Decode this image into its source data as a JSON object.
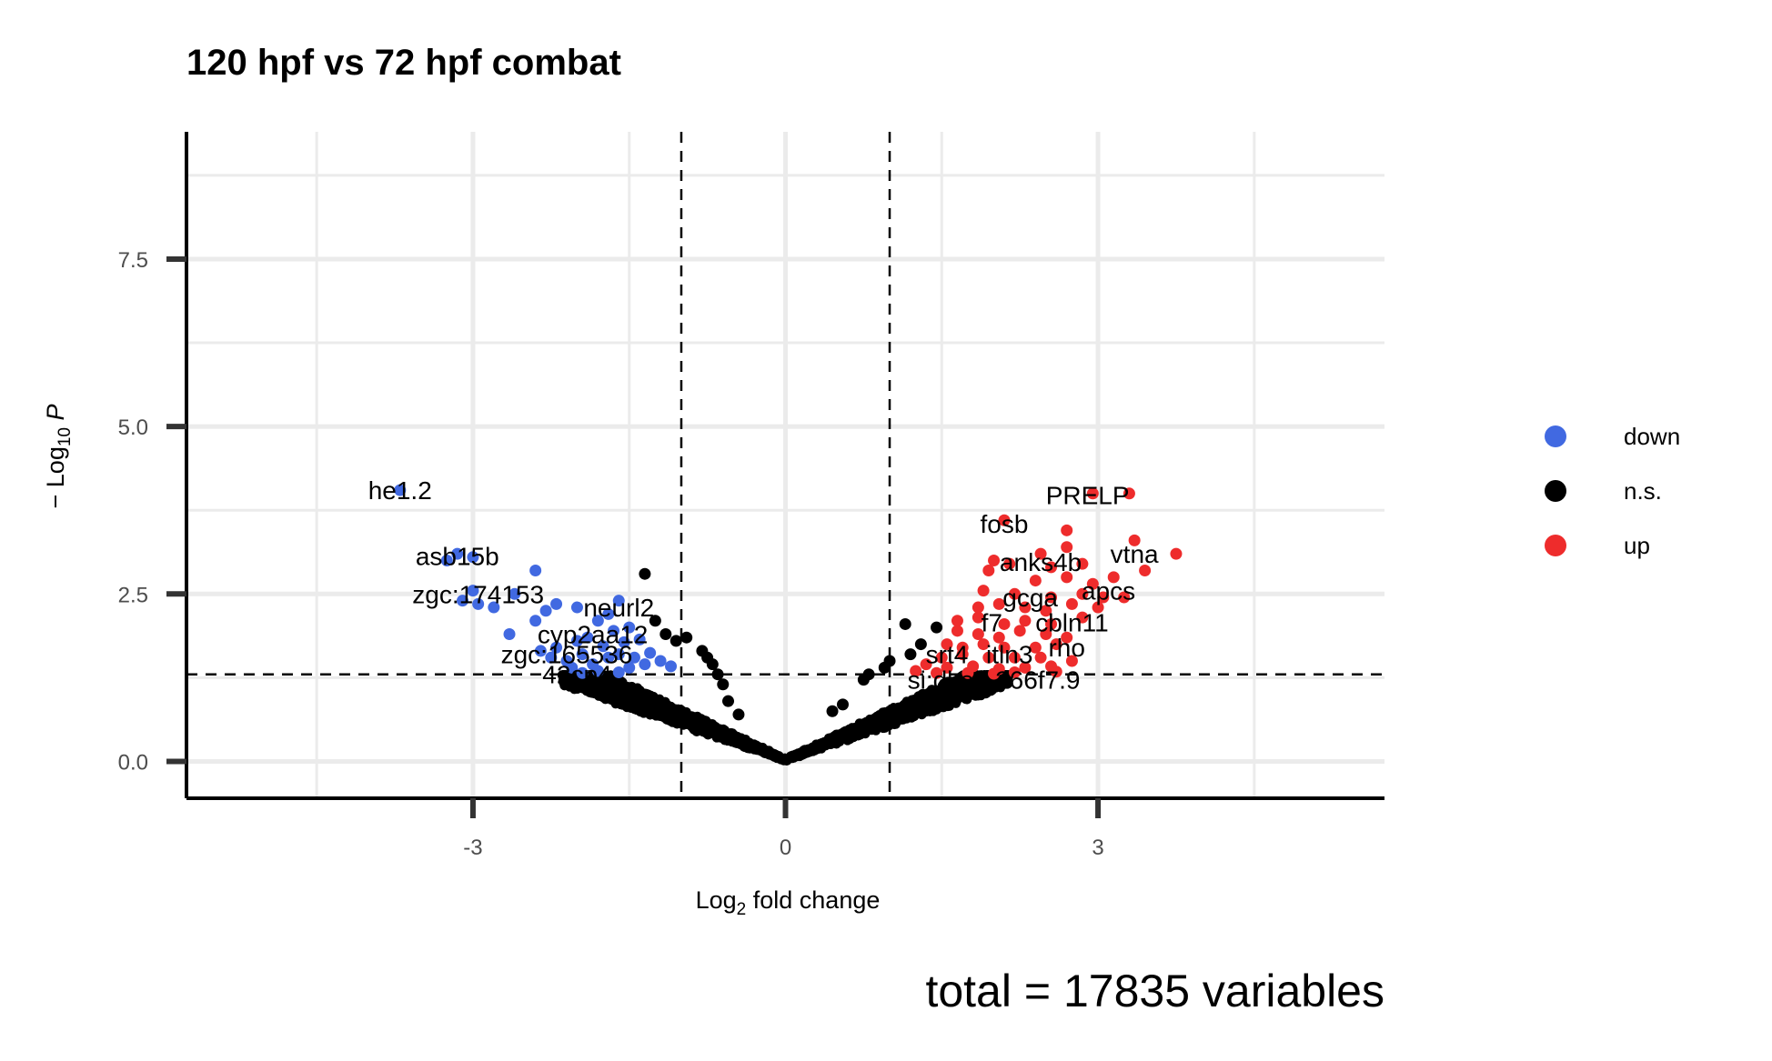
{
  "chart_data": {
    "type": "scatter",
    "title": "120 hpf vs 72 hpf combat",
    "xlabel": {
      "prefix": "Log",
      "subscript": "2",
      "suffix": " fold change"
    },
    "ylabel": {
      "prefix": "− Log",
      "subscript": "10",
      "italic": " P"
    },
    "caption": "total = 17835 variables",
    "xlim": [
      -5.75,
      5.75
    ],
    "ylim": [
      -0.55,
      9.4
    ],
    "x_ticks": [
      -3,
      0,
      3
    ],
    "x_tick_labels": [
      "-3",
      "0",
      "3"
    ],
    "y_ticks": [
      0,
      2.5,
      5,
      7.5
    ],
    "y_tick_labels": [
      "0.0",
      "2.5",
      "5.0",
      "7.5"
    ],
    "x_minor_grid": [
      -4.5,
      -1.5,
      1.5,
      4.5
    ],
    "y_minor_grid": [
      1.25,
      3.75,
      6.25,
      8.75
    ],
    "thresholds": {
      "log2fc": [
        -1,
        1
      ],
      "neg_log10_p": 1.3
    },
    "grid": true,
    "legend": {
      "position": "right",
      "title": ""
    },
    "series": [
      {
        "name": "down",
        "color": "#4169e1",
        "points": [
          [
            -3.7,
            4.05
          ],
          [
            -3.15,
            3.1
          ],
          [
            -3.0,
            3.05
          ],
          [
            -3.25,
            3.0
          ],
          [
            -2.4,
            2.85
          ],
          [
            -3.0,
            2.55
          ],
          [
            -2.6,
            2.5
          ],
          [
            -2.2,
            2.35
          ],
          [
            -2.95,
            2.35
          ],
          [
            -3.1,
            2.4
          ],
          [
            -2.8,
            2.3
          ],
          [
            -2.3,
            2.25
          ],
          [
            -1.6,
            2.4
          ],
          [
            -1.7,
            2.2
          ],
          [
            -2.0,
            2.3
          ],
          [
            -2.4,
            2.1
          ],
          [
            -2.65,
            1.9
          ],
          [
            -1.8,
            2.1
          ],
          [
            -1.65,
            1.95
          ],
          [
            -1.5,
            2.0
          ],
          [
            -2.0,
            1.8
          ],
          [
            -1.9,
            1.85
          ],
          [
            -2.35,
            1.65
          ],
          [
            -2.2,
            1.7
          ],
          [
            -1.75,
            1.72
          ],
          [
            -1.55,
            1.78
          ],
          [
            -1.4,
            1.82
          ],
          [
            -2.25,
            1.55
          ],
          [
            -2.1,
            1.5
          ],
          [
            -1.95,
            1.6
          ],
          [
            -1.85,
            1.45
          ],
          [
            -1.7,
            1.55
          ],
          [
            -1.6,
            1.6
          ],
          [
            -1.45,
            1.55
          ],
          [
            -1.3,
            1.62
          ],
          [
            -2.05,
            1.4
          ],
          [
            -1.8,
            1.35
          ],
          [
            -1.5,
            1.4
          ],
          [
            -1.35,
            1.45
          ],
          [
            -1.2,
            1.5
          ],
          [
            -1.1,
            1.42
          ],
          [
            -1.95,
            1.32
          ],
          [
            -1.6,
            1.33
          ]
        ]
      },
      {
        "name": "n.s.",
        "color": "#000000",
        "points": [
          [
            -1.35,
            2.8
          ],
          [
            -1.25,
            2.1
          ],
          [
            -1.15,
            1.9
          ],
          [
            -1.05,
            1.8
          ],
          [
            -0.95,
            1.85
          ],
          [
            -0.8,
            1.65
          ],
          [
            -0.75,
            1.55
          ],
          [
            -0.7,
            1.45
          ],
          [
            -0.65,
            1.3
          ],
          [
            -0.6,
            1.15
          ],
          [
            1.15,
            2.05
          ],
          [
            1.45,
            2.0
          ],
          [
            1.3,
            1.75
          ],
          [
            1.2,
            1.6
          ],
          [
            1.0,
            1.5
          ],
          [
            0.95,
            1.4
          ],
          [
            0.8,
            1.3
          ],
          [
            0.75,
            1.22
          ],
          [
            0.55,
            0.85
          ],
          [
            0.45,
            0.75
          ],
          [
            -0.45,
            0.7
          ],
          [
            -0.55,
            0.9
          ]
        ]
      },
      {
        "name": "up",
        "color": "#ee2c2c",
        "points": [
          [
            2.95,
            4.0
          ],
          [
            3.3,
            4.0
          ],
          [
            2.1,
            3.6
          ],
          [
            2.7,
            3.45
          ],
          [
            2.45,
            3.1
          ],
          [
            2.0,
            3.0
          ],
          [
            2.7,
            3.2
          ],
          [
            3.35,
            3.3
          ],
          [
            3.75,
            3.1
          ],
          [
            2.15,
            2.95
          ],
          [
            2.55,
            2.9
          ],
          [
            2.85,
            2.95
          ],
          [
            1.95,
            2.85
          ],
          [
            2.4,
            2.7
          ],
          [
            2.7,
            2.75
          ],
          [
            2.95,
            2.65
          ],
          [
            3.15,
            2.75
          ],
          [
            3.45,
            2.85
          ],
          [
            1.9,
            2.55
          ],
          [
            2.2,
            2.5
          ],
          [
            2.55,
            2.45
          ],
          [
            2.85,
            2.5
          ],
          [
            3.05,
            2.45
          ],
          [
            3.25,
            2.45
          ],
          [
            1.85,
            2.3
          ],
          [
            2.05,
            2.35
          ],
          [
            2.3,
            2.3
          ],
          [
            2.5,
            2.25
          ],
          [
            2.75,
            2.35
          ],
          [
            3.0,
            2.3
          ],
          [
            1.65,
            2.1
          ],
          [
            1.85,
            2.15
          ],
          [
            2.1,
            2.05
          ],
          [
            2.3,
            2.1
          ],
          [
            2.55,
            2.05
          ],
          [
            2.85,
            2.15
          ],
          [
            1.65,
            1.95
          ],
          [
            1.85,
            1.9
          ],
          [
            2.05,
            1.85
          ],
          [
            2.25,
            1.95
          ],
          [
            2.5,
            1.9
          ],
          [
            2.7,
            1.85
          ],
          [
            1.55,
            1.75
          ],
          [
            1.7,
            1.7
          ],
          [
            1.9,
            1.75
          ],
          [
            2.1,
            1.7
          ],
          [
            2.4,
            1.7
          ],
          [
            2.6,
            1.75
          ],
          [
            1.5,
            1.55
          ],
          [
            1.7,
            1.6
          ],
          [
            1.95,
            1.55
          ],
          [
            2.2,
            1.55
          ],
          [
            2.45,
            1.55
          ],
          [
            2.75,
            1.5
          ],
          [
            1.35,
            1.45
          ],
          [
            1.55,
            1.4
          ],
          [
            1.8,
            1.42
          ],
          [
            2.05,
            1.38
          ],
          [
            2.3,
            1.4
          ],
          [
            2.55,
            1.42
          ],
          [
            1.25,
            1.35
          ],
          [
            1.45,
            1.32
          ],
          [
            1.75,
            1.32
          ],
          [
            2.0,
            1.31
          ],
          [
            2.2,
            1.33
          ],
          [
            2.6,
            1.34
          ]
        ]
      }
    ],
    "annotations": [
      {
        "text": "he1.2",
        "x": -3.7,
        "y": 4.05,
        "anchor": "middle"
      },
      {
        "text": "asb15b",
        "x": -3.15,
        "y": 3.07,
        "anchor": "middle"
      },
      {
        "text": "zgc:174153",
        "x": -2.95,
        "y": 2.5,
        "anchor": "middle"
      },
      {
        "text": "neurl2",
        "x": -1.6,
        "y": 2.3,
        "anchor": "middle"
      },
      {
        "text": "cyp2aa12",
        "x": -1.85,
        "y": 1.9,
        "anchor": "middle"
      },
      {
        "text": "zgc:165536",
        "x": -2.1,
        "y": 1.6,
        "anchor": "middle"
      },
      {
        "text": "42cp4",
        "x": -2.0,
        "y": 1.3,
        "anchor": "middle"
      },
      {
        "text": "PRELP",
        "x": 2.9,
        "y": 3.98,
        "anchor": "middle"
      },
      {
        "text": "fosb",
        "x": 2.1,
        "y": 3.55,
        "anchor": "middle"
      },
      {
        "text": "vtna",
        "x": 3.35,
        "y": 3.1,
        "anchor": "middle"
      },
      {
        "text": "anks4b",
        "x": 2.45,
        "y": 2.98,
        "anchor": "middle"
      },
      {
        "text": "apcs",
        "x": 3.1,
        "y": 2.55,
        "anchor": "middle"
      },
      {
        "text": "gcga",
        "x": 2.35,
        "y": 2.45,
        "anchor": "middle"
      },
      {
        "text": "f7",
        "x": 1.98,
        "y": 2.08,
        "anchor": "middle"
      },
      {
        "text": "cbln11",
        "x": 2.75,
        "y": 2.08,
        "anchor": "middle"
      },
      {
        "text": "rho",
        "x": 2.7,
        "y": 1.7,
        "anchor": "middle"
      },
      {
        "text": "itln3",
        "x": 2.15,
        "y": 1.6,
        "anchor": "middle"
      },
      {
        "text": "srt4",
        "x": 1.55,
        "y": 1.6,
        "anchor": "middle"
      },
      {
        "text": "si:dkey-266f7.9",
        "x": 2.0,
        "y": 1.22,
        "anchor": "middle"
      }
    ],
    "legend_entries": [
      {
        "name": "down",
        "color": "#4169e1"
      },
      {
        "name": "n.s.",
        "color": "#000000"
      },
      {
        "name": "up",
        "color": "#ee2c2c"
      }
    ]
  }
}
